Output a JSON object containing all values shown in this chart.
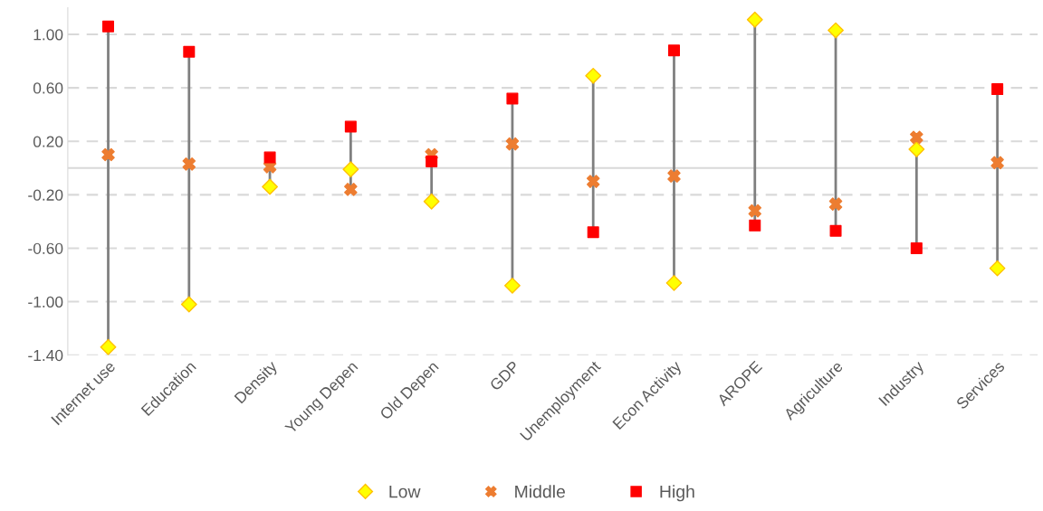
{
  "chart_data": {
    "type": "scatter",
    "categories": [
      "Internet use",
      "Education",
      "Density",
      "Young Depen",
      "Old Depen",
      "GDP",
      "Unemployment",
      "Econ Activity",
      "AROPE",
      "Agriculture",
      "Industry",
      "Services"
    ],
    "series": [
      {
        "name": "Low",
        "color": "#ffff00",
        "marker": "diamond",
        "values": [
          -1.34,
          -1.02,
          -0.14,
          -0.01,
          -0.25,
          -0.88,
          0.69,
          -0.86,
          1.11,
          1.03,
          0.14,
          -0.75
        ]
      },
      {
        "name": "Middle",
        "color": "#ed7d31",
        "marker": "cross",
        "values": [
          0.1,
          0.03,
          0.01,
          -0.16,
          0.1,
          0.18,
          -0.1,
          -0.06,
          -0.32,
          -0.27,
          0.23,
          0.04
        ]
      },
      {
        "name": "High",
        "color": "#ff0000",
        "marker": "square",
        "values": [
          1.06,
          0.87,
          0.08,
          0.31,
          0.05,
          0.52,
          -0.48,
          0.88,
          -0.43,
          -0.47,
          -0.6,
          0.59
        ]
      }
    ],
    "ylim": [
      -1.4,
      1.2
    ],
    "yticks": [
      {
        "value": -1.4,
        "label": "-1.40"
      },
      {
        "value": -1.0,
        "label": "-1.00"
      },
      {
        "value": -0.6,
        "label": "-0.60"
      },
      {
        "value": -0.2,
        "label": "-0.20"
      },
      {
        "value": 0.2,
        "label": "0.20"
      },
      {
        "value": 0.6,
        "label": "0.60"
      },
      {
        "value": 1.0,
        "label": "1.00"
      }
    ],
    "ref_lines": [
      {
        "axis": "y",
        "value": 0,
        "color": "#d9d9d9",
        "line_style": "solid"
      }
    ],
    "grid": "y",
    "legend": "bottom"
  }
}
